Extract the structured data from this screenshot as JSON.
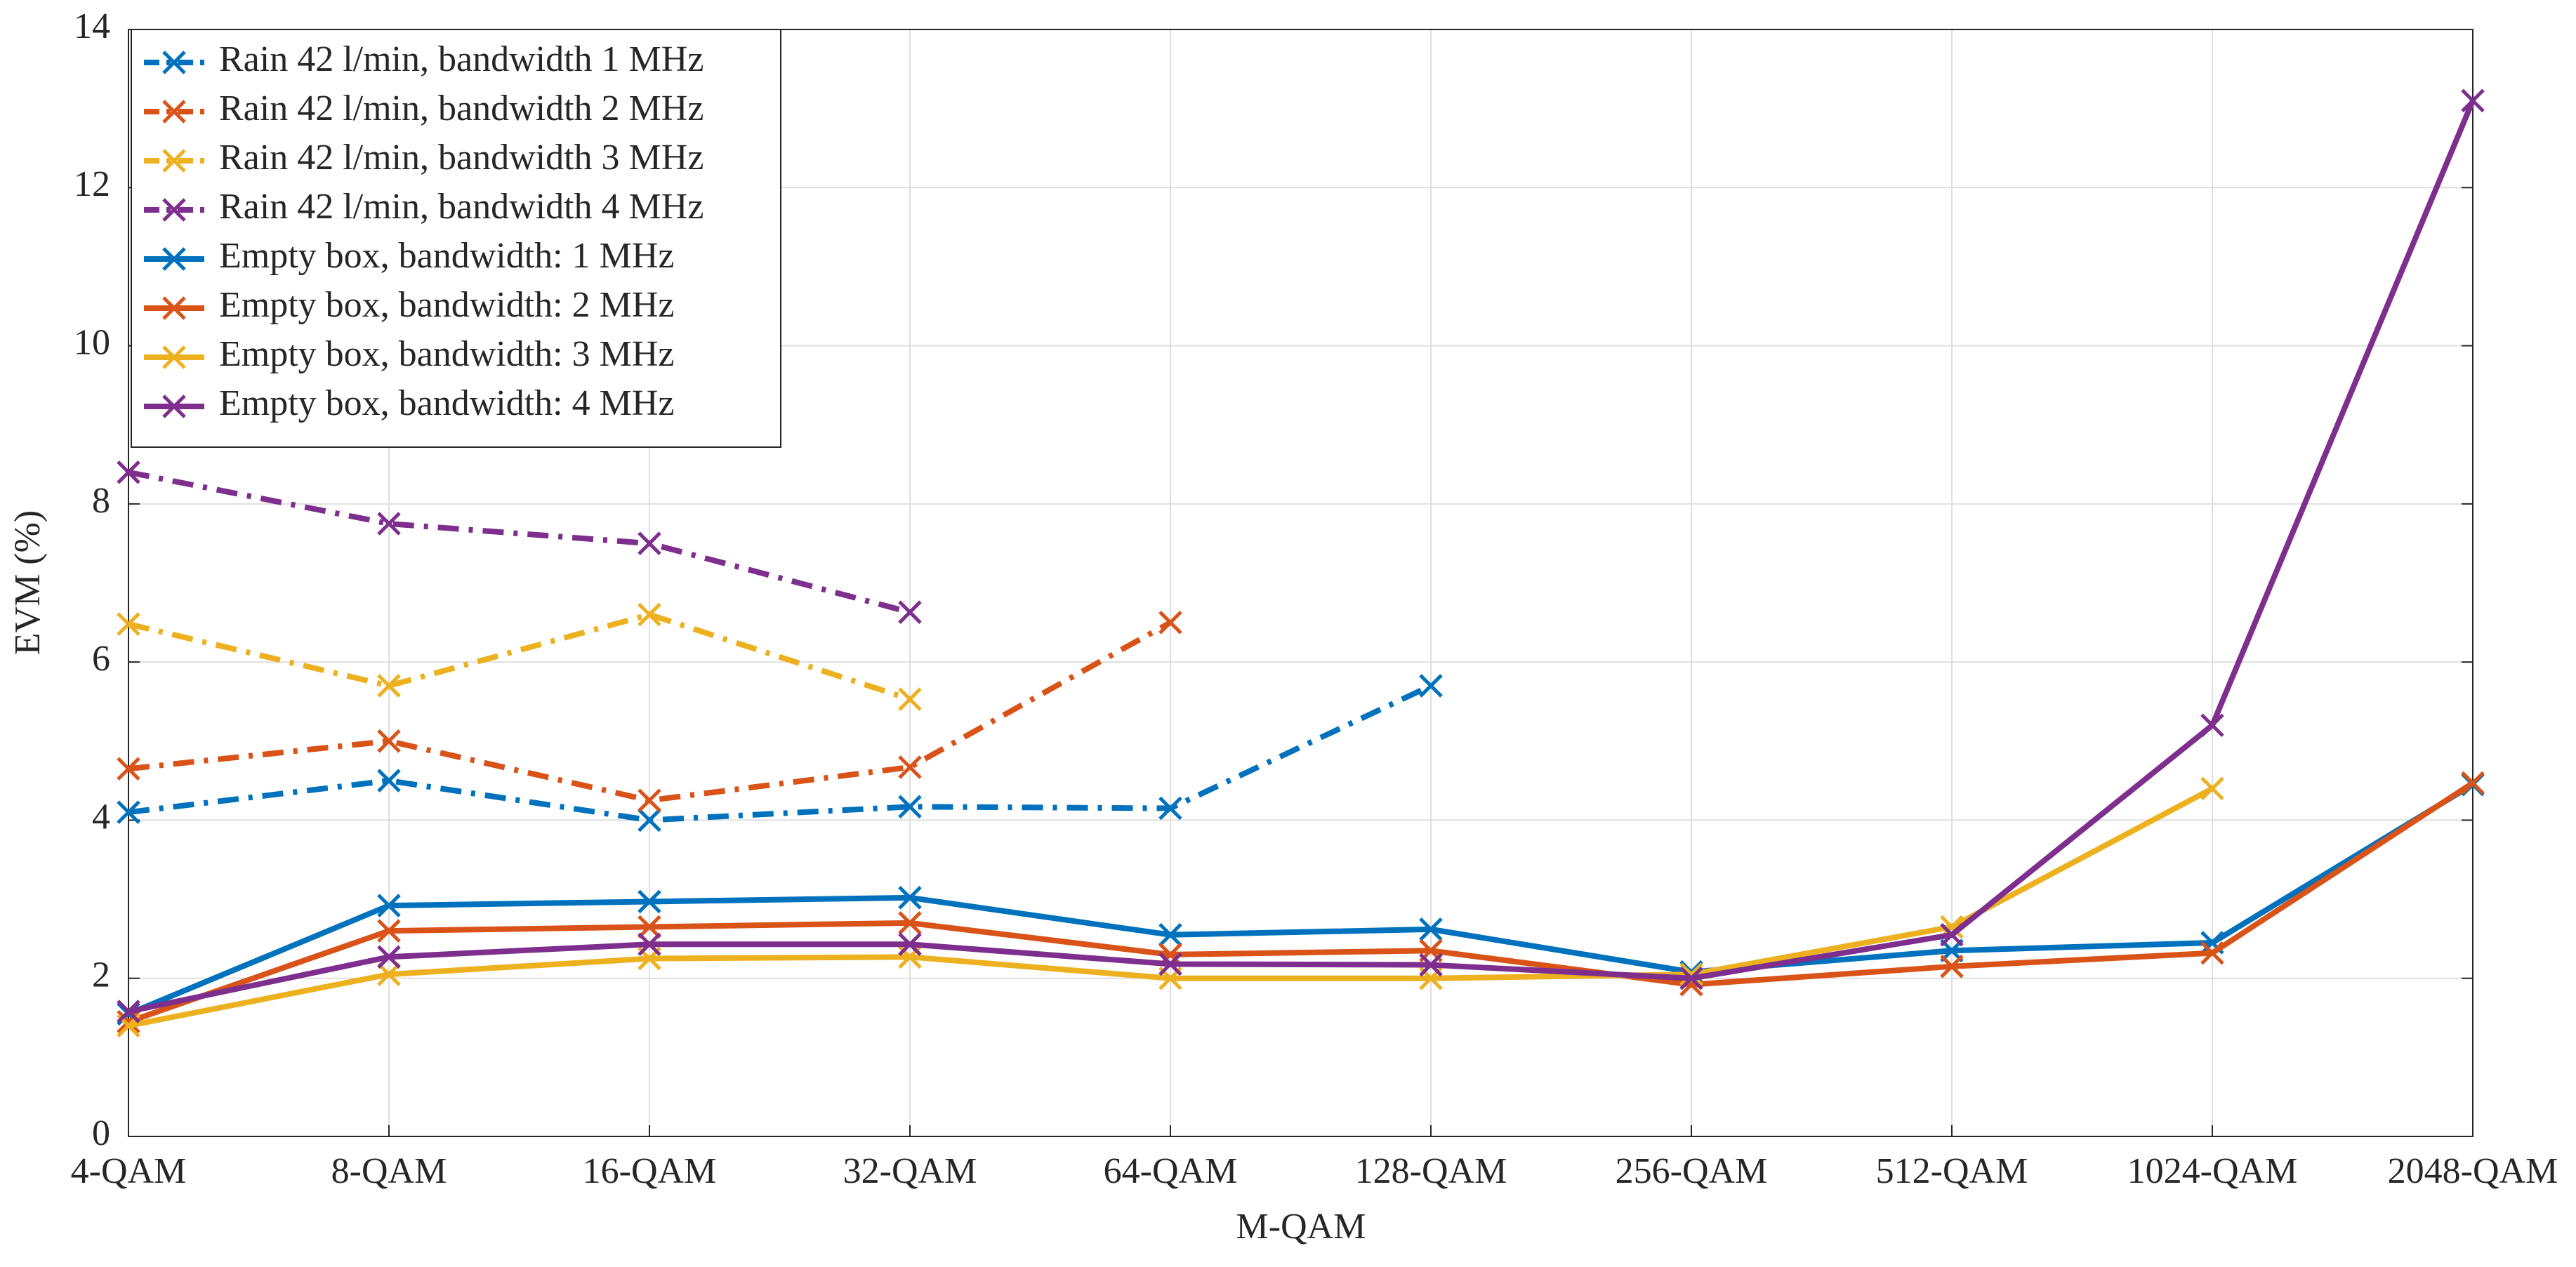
{
  "chart_data": {
    "type": "line",
    "xlabel": "M-QAM",
    "ylabel": "EVM (%)",
    "categories": [
      "4-QAM",
      "8-QAM",
      "16-QAM",
      "32-QAM",
      "64-QAM",
      "128-QAM",
      "256-QAM",
      "512-QAM",
      "1024-QAM",
      "2048-QAM"
    ],
    "ylim": [
      0,
      14
    ],
    "yticks": [
      0,
      2,
      4,
      6,
      8,
      10,
      12,
      14
    ],
    "grid": true,
    "legend": "upper left",
    "series": [
      {
        "name": "Rain 42 l/min, bandwidth 1 MHz",
        "color": "#0072BD",
        "dash": "dash-dot",
        "values": [
          4.1,
          4.5,
          4.0,
          4.17,
          4.15,
          5.7,
          null,
          null,
          null,
          null
        ]
      },
      {
        "name": "Rain 42 l/min, bandwidth 2 MHz",
        "color": "#D95319",
        "dash": "dash-dot",
        "values": [
          4.65,
          5.0,
          4.25,
          4.67,
          6.5,
          null,
          null,
          null,
          null,
          null
        ]
      },
      {
        "name": "Rain 42 l/min, bandwidth 3 MHz",
        "color": "#EDB120",
        "dash": "dash-dot",
        "values": [
          6.48,
          5.7,
          6.6,
          5.53,
          null,
          null,
          null,
          null,
          null,
          null
        ]
      },
      {
        "name": "Rain 42 l/min, bandwidth 4 MHz",
        "color": "#7E2F8E",
        "dash": "dash-dot",
        "values": [
          8.4,
          7.75,
          7.5,
          6.63,
          null,
          null,
          null,
          null,
          null,
          null
        ]
      },
      {
        "name": "Empty box, bandwidth: 1 MHz",
        "color": "#0072BD",
        "dash": "solid",
        "values": [
          1.55,
          2.92,
          2.97,
          3.02,
          2.55,
          2.62,
          2.08,
          2.35,
          2.45,
          4.45
        ]
      },
      {
        "name": "Empty box, bandwidth: 2 MHz",
        "color": "#D95319",
        "dash": "solid",
        "values": [
          1.45,
          2.6,
          2.65,
          2.7,
          2.3,
          2.35,
          1.92,
          2.15,
          2.32,
          4.47
        ]
      },
      {
        "name": "Empty box, bandwidth: 3 MHz",
        "color": "#EDB120",
        "dash": "solid",
        "values": [
          1.4,
          2.05,
          2.25,
          2.27,
          2.0,
          2.0,
          2.05,
          2.65,
          4.4,
          null
        ]
      },
      {
        "name": "Empty box, bandwidth: 4 MHz",
        "color": "#7E2F8E",
        "dash": "solid",
        "values": [
          1.58,
          2.27,
          2.43,
          2.43,
          2.18,
          2.17,
          2.0,
          2.55,
          5.2,
          13.1
        ]
      }
    ]
  }
}
